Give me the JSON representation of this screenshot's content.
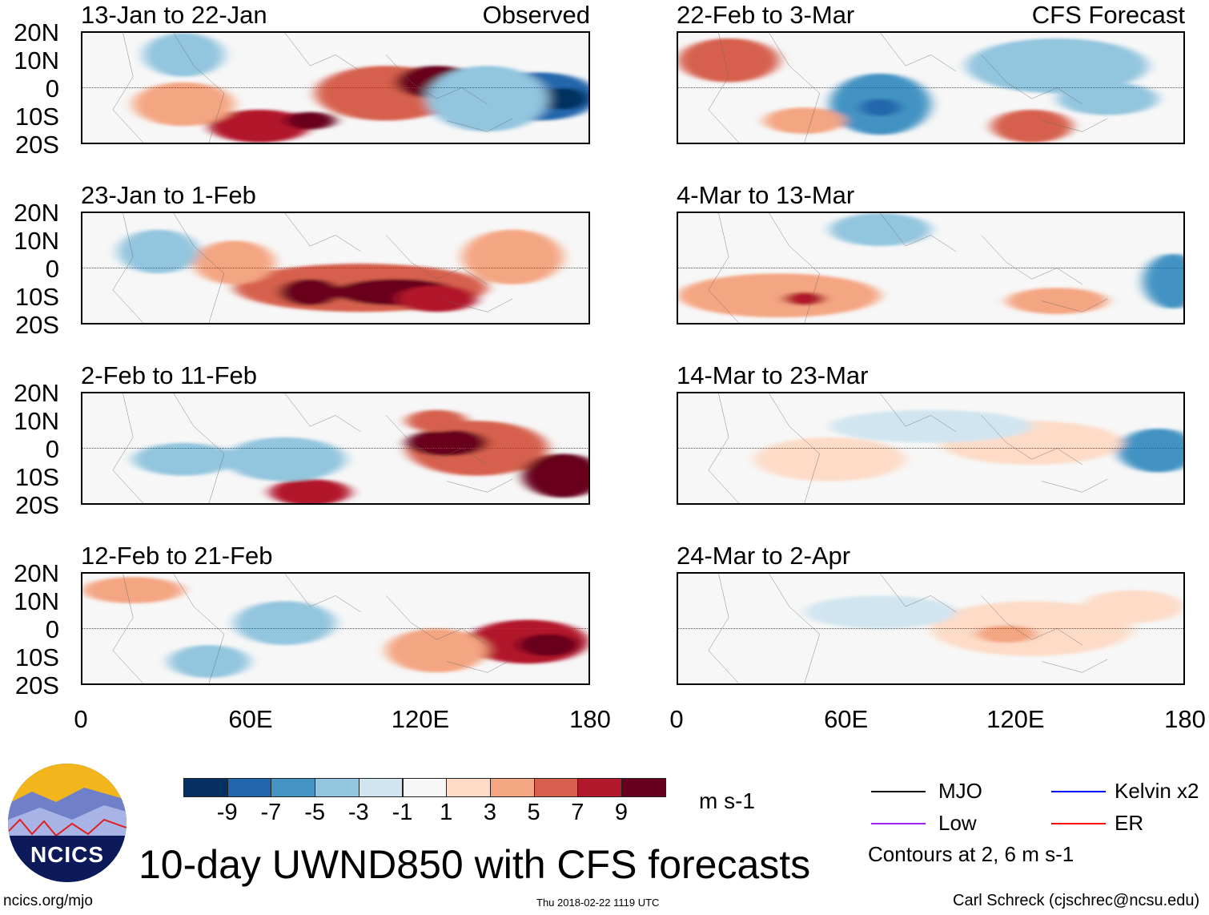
{
  "panels_left": [
    {
      "title": "13-Jan to 22-Jan",
      "tag": "Observed"
    },
    {
      "title": "23-Jan to 1-Feb",
      "tag": ""
    },
    {
      "title": "2-Feb to 11-Feb",
      "tag": ""
    },
    {
      "title": "12-Feb to 21-Feb",
      "tag": ""
    }
  ],
  "panels_right": [
    {
      "title": "22-Feb to 3-Mar",
      "tag": "CFS Forecast"
    },
    {
      "title": "4-Mar to 13-Mar",
      "tag": ""
    },
    {
      "title": "14-Mar to 23-Mar",
      "tag": ""
    },
    {
      "title": "24-Mar to 2-Apr",
      "tag": ""
    }
  ],
  "lat_labels": [
    "20N",
    "10N",
    "0",
    "10S",
    "20S"
  ],
  "lon_labels": [
    "0",
    "60E",
    "120E",
    "180"
  ],
  "colorbar": {
    "colors": [
      "#053061",
      "#2166ac",
      "#4393c3",
      "#92c5de",
      "#d1e5f0",
      "#f7f7f7",
      "#fddbc7",
      "#f4a582",
      "#d6604d",
      "#b2182b",
      "#67001f"
    ],
    "labels": [
      "-9",
      "-7",
      "-5",
      "-3",
      "-1",
      "1",
      "3",
      "5",
      "7",
      "9"
    ],
    "units": "m s-1"
  },
  "legend": {
    "items": [
      {
        "label": "MJO",
        "color": "#000000"
      },
      {
        "label": "Kelvin x2",
        "color": "#0000ff"
      },
      {
        "label": "Low",
        "color": "#a020f0"
      },
      {
        "label": "ER",
        "color": "#ff0000"
      }
    ],
    "note": "Contours at 2, 6 m s-1"
  },
  "logo_text": "NCICS",
  "main_title": "10-day UWND850 with CFS forecasts",
  "footer": {
    "url": "ncics.org/mjo",
    "timestamp": "Thu 2018-02-22 1119 UTC",
    "credit": "Carl Schreck (cjschrec@ncsu.edu)"
  }
}
